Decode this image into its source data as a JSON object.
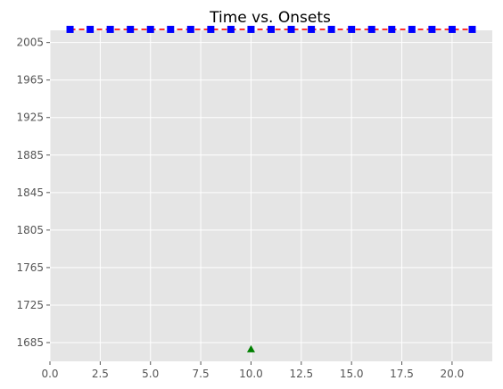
{
  "chart_data": {
    "type": "scatter",
    "title": "Time vs. Onsets",
    "xlabel": "",
    "ylabel": "",
    "xlim": [
      0,
      22
    ],
    "ylim": [
      1665,
      2018
    ],
    "x_ticks": [
      0.0,
      2.5,
      5.0,
      7.5,
      10.0,
      12.5,
      15.0,
      17.5,
      20.0
    ],
    "x_tick_labels": [
      "0.0",
      "2.5",
      "5.0",
      "7.5",
      "10.0",
      "12.5",
      "15.0",
      "17.5",
      "20.0"
    ],
    "y_ticks": [
      1685,
      1725,
      1765,
      1805,
      1845,
      1885,
      1925,
      1965,
      2005
    ],
    "y_tick_labels": [
      "1685",
      "1725",
      "1765",
      "1805",
      "1845",
      "1885",
      "1925",
      "1965",
      "2005"
    ],
    "grid": true,
    "legend": "none",
    "series": [
      {
        "style": "dashed-line",
        "color": "#ff0000",
        "x": [
          1,
          2,
          3,
          4,
          5,
          6,
          7,
          8,
          9,
          10,
          11,
          12,
          13,
          14,
          15,
          16,
          17,
          18,
          19,
          20,
          21
        ],
        "y": [
          2019,
          2019,
          2019,
          2019,
          2019,
          2019,
          2019,
          2019,
          2019,
          2019,
          2019,
          2019,
          2019,
          2019,
          2019,
          2019,
          2019,
          2019,
          2019,
          2019,
          2019
        ]
      },
      {
        "style": "square-markers",
        "color": "#0000ff",
        "x": [
          1,
          2,
          3,
          4,
          5,
          6,
          7,
          8,
          9,
          10,
          11,
          12,
          13,
          14,
          15,
          16,
          17,
          18,
          19,
          20,
          21
        ],
        "y": [
          2019,
          2019,
          2019,
          2019,
          2019,
          2019,
          2019,
          2019,
          2019,
          2019,
          2019,
          2019,
          2019,
          2019,
          2019,
          2019,
          2019,
          2019,
          2019,
          2019,
          2019
        ]
      },
      {
        "style": "triangle-markers",
        "color": "#008000",
        "x": [
          10
        ],
        "y": [
          1678
        ]
      }
    ],
    "colors": {
      "plot_background": "#e5e5e5",
      "grid": "#ffffff",
      "tick_text": "#555555"
    }
  }
}
